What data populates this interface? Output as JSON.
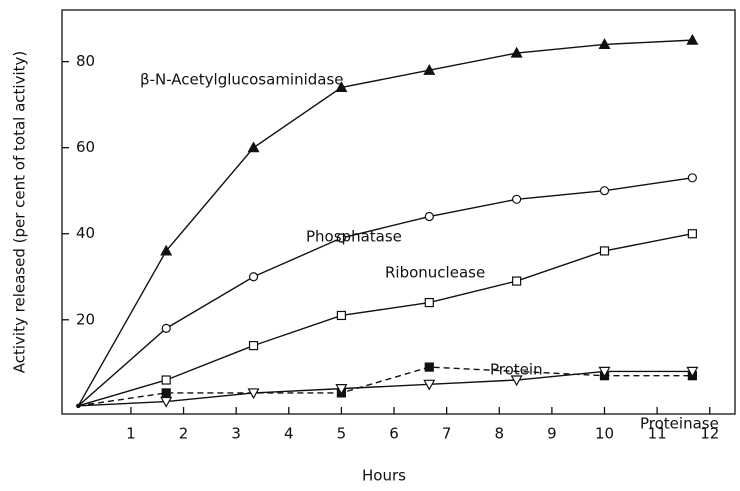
{
  "chart_data": {
    "type": "line",
    "xlabel": "Hours",
    "ylabel": "Activity released (per cent of total activity)",
    "xlim": [
      -0.31,
      12.48
    ],
    "xticks": [
      1,
      2,
      3,
      4,
      5,
      6,
      7,
      8,
      9,
      10,
      11,
      12
    ],
    "ylim": [
      -1.9,
      92
    ],
    "yticks": [
      20,
      40,
      60,
      80
    ],
    "series": [
      {
        "name": "β-N-Acetylglucosaminidase",
        "color": "#111111",
        "marker": "triangle-filled",
        "dash": false,
        "x": [
          0,
          1.67,
          3.33,
          5,
          6.67,
          8.33,
          10,
          11.67
        ],
        "values": [
          0,
          36,
          60,
          74,
          78,
          82,
          84,
          85
        ]
      },
      {
        "name": "Phosphatase",
        "color": "#111111",
        "marker": "circle-open",
        "dash": false,
        "x": [
          0,
          1.67,
          3.33,
          5,
          6.67,
          8.33,
          10,
          11.67
        ],
        "values": [
          0,
          18,
          30,
          39,
          44,
          48,
          50,
          53
        ]
      },
      {
        "name": "Ribonuclease",
        "color": "#111111",
        "marker": "square-open",
        "dash": false,
        "x": [
          0,
          1.67,
          3.33,
          5,
          6.67,
          8.33,
          10,
          11.67
        ],
        "values": [
          0,
          6,
          14,
          21,
          24,
          29,
          36,
          40
        ]
      },
      {
        "name": "Protein",
        "color": "#111111",
        "marker": "square-filled",
        "dash": true,
        "x": [
          0,
          1.67,
          5,
          6.67,
          10,
          11.67
        ],
        "values": [
          0,
          3,
          3,
          9,
          7,
          7
        ]
      },
      {
        "name": "Proteinase",
        "color": "#111111",
        "marker": "triangle-down-open",
        "dash": false,
        "x": [
          0,
          1.67,
          3.33,
          5,
          6.67,
          8.33,
          10,
          11.67
        ],
        "values": [
          0,
          1,
          3,
          4,
          5,
          6,
          8,
          8
        ]
      }
    ]
  }
}
